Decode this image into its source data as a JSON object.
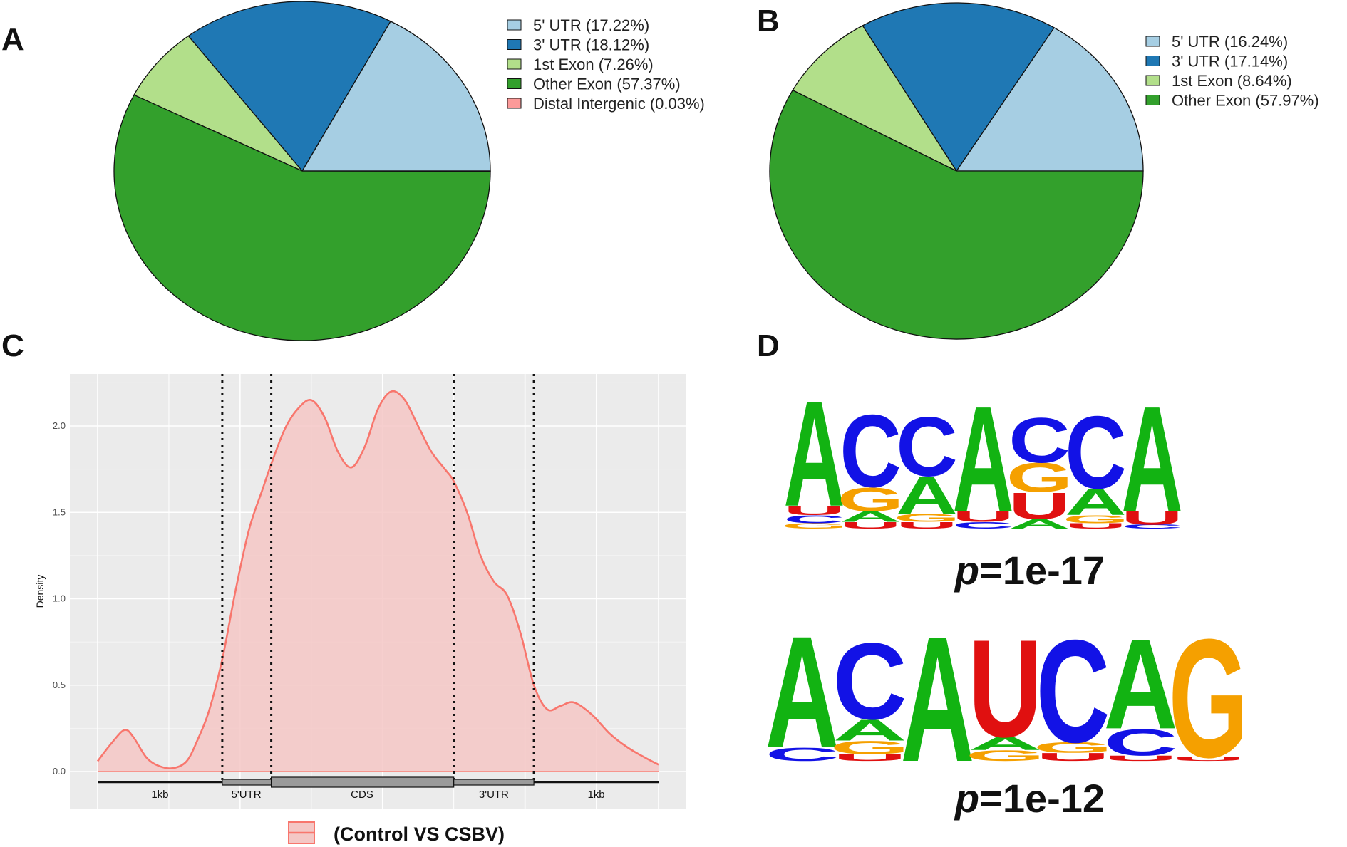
{
  "panels": {
    "a": "A",
    "b": "B",
    "c": "C",
    "d": "D"
  },
  "colors": {
    "utr5": "#a6cee3",
    "utr3": "#1f78b4",
    "first_exon": "#b2df8a",
    "other_exon": "#33a02c",
    "distal": "#fb9a99",
    "density_line": "#f8766d",
    "density_fill": "#f4c7c5",
    "plot_bg": "#ebebeb",
    "base_A": "#12b312",
    "base_C": "#1212e6",
    "base_G": "#f5a000",
    "base_U": "#e01010"
  },
  "chart_data": [
    {
      "id": "A",
      "type": "pie",
      "slices": [
        {
          "label": "5' UTR (17.22%)",
          "value": 17.22,
          "color_key": "utr5"
        },
        {
          "label": "3' UTR (18.12%)",
          "value": 18.12,
          "color_key": "utr3"
        },
        {
          "label": "1st Exon (7.26%)",
          "value": 7.26,
          "color_key": "first_exon"
        },
        {
          "label": "Other Exon (57.37%)",
          "value": 57.37,
          "color_key": "other_exon"
        },
        {
          "label": "Distal Intergenic (0.03%)",
          "value": 0.03,
          "color_key": "distal"
        }
      ]
    },
    {
      "id": "B",
      "type": "pie",
      "slices": [
        {
          "label": "5' UTR (16.24%)",
          "value": 16.24,
          "color_key": "utr5"
        },
        {
          "label": "3' UTR (17.14%)",
          "value": 17.14,
          "color_key": "utr3"
        },
        {
          "label": "1st Exon (8.64%)",
          "value": 8.64,
          "color_key": "first_exon"
        },
        {
          "label": "Other Exon (57.97%)",
          "value": 57.97,
          "color_key": "other_exon"
        }
      ]
    },
    {
      "id": "C",
      "type": "area",
      "ylabel": "Density",
      "ylim": [
        -0.2,
        2.3
      ],
      "xlim": [
        0,
        6.3
      ],
      "yticks": [
        0.0,
        0.5,
        1.0,
        1.5,
        2.0
      ],
      "ytick_labels": [
        "0.0",
        "0.5",
        "1.0",
        "1.5",
        "2.0"
      ],
      "x_minor_grid": [
        0.8,
        1.6,
        2.4,
        3.2,
        4.0,
        4.8,
        5.6
      ],
      "boundaries": [
        1.4,
        1.95,
        4.0,
        4.9
      ],
      "regions": [
        {
          "label": "1kb",
          "start": 0,
          "end": 1.4,
          "center": 0.7
        },
        {
          "label": "5'UTR",
          "start": 1.4,
          "end": 1.95,
          "center": 1.67
        },
        {
          "label": "CDS",
          "start": 1.95,
          "end": 4.0,
          "center": 2.97
        },
        {
          "label": "3'UTR",
          "start": 4.0,
          "end": 4.9,
          "center": 4.45
        },
        {
          "label": "1kb",
          "start": 4.9,
          "end": 6.3,
          "center": 5.6
        }
      ],
      "legend_label": "(Control VS CSBV)",
      "x": [
        0.0,
        0.15,
        0.3,
        0.4,
        0.55,
        0.7,
        0.85,
        1.0,
        1.12,
        1.25,
        1.4,
        1.55,
        1.7,
        1.85,
        1.95,
        2.1,
        2.25,
        2.4,
        2.55,
        2.7,
        2.85,
        3.0,
        3.15,
        3.3,
        3.45,
        3.6,
        3.75,
        3.9,
        4.0,
        4.15,
        4.3,
        4.45,
        4.6,
        4.75,
        4.9,
        5.05,
        5.2,
        5.35,
        5.55,
        5.75,
        5.95,
        6.15,
        6.3
      ],
      "y": [
        0.06,
        0.16,
        0.24,
        0.2,
        0.08,
        0.03,
        0.02,
        0.06,
        0.18,
        0.35,
        0.65,
        1.05,
        1.4,
        1.63,
        1.78,
        1.98,
        2.1,
        2.15,
        2.05,
        1.85,
        1.76,
        1.88,
        2.1,
        2.2,
        2.15,
        2.0,
        1.85,
        1.75,
        1.68,
        1.5,
        1.25,
        1.1,
        1.02,
        0.8,
        0.5,
        0.36,
        0.38,
        0.4,
        0.33,
        0.22,
        0.14,
        0.08,
        0.04
      ]
    }
  ],
  "motifs": [
    {
      "pvalue": {
        "prefix": "p",
        "suffix": "=1e-17"
      },
      "positions": [
        [
          {
            "base": "A",
            "h": 0.8
          },
          {
            "base": "U",
            "h": 0.07
          },
          {
            "base": "C",
            "h": 0.06
          },
          {
            "base": "G",
            "h": 0.04
          }
        ],
        [
          {
            "base": "C",
            "h": 0.55
          },
          {
            "base": "G",
            "h": 0.18
          },
          {
            "base": "A",
            "h": 0.08
          },
          {
            "base": "U",
            "h": 0.05
          }
        ],
        [
          {
            "base": "C",
            "h": 0.45
          },
          {
            "base": "A",
            "h": 0.28
          },
          {
            "base": "G",
            "h": 0.06
          },
          {
            "base": "U",
            "h": 0.05
          }
        ],
        [
          {
            "base": "A",
            "h": 0.8
          },
          {
            "base": "U",
            "h": 0.08
          },
          {
            "base": "C",
            "h": 0.05
          }
        ],
        [
          {
            "base": "C",
            "h": 0.34
          },
          {
            "base": "G",
            "h": 0.22
          },
          {
            "base": "U",
            "h": 0.2
          },
          {
            "base": "A",
            "h": 0.07
          }
        ],
        [
          {
            "base": "C",
            "h": 0.55
          },
          {
            "base": "A",
            "h": 0.2
          },
          {
            "base": "G",
            "h": 0.06
          },
          {
            "base": "U",
            "h": 0.04
          }
        ],
        [
          {
            "base": "A",
            "h": 0.8
          },
          {
            "base": "U",
            "h": 0.1
          },
          {
            "base": "C",
            "h": 0.03
          }
        ]
      ]
    },
    {
      "pvalue": {
        "prefix": "p",
        "suffix": "=1e-12"
      },
      "positions": [
        [
          {
            "base": "A",
            "h": 0.85
          },
          {
            "base": "C",
            "h": 0.1
          }
        ],
        [
          {
            "base": "C",
            "h": 0.58
          },
          {
            "base": "A",
            "h": 0.16
          },
          {
            "base": "G",
            "h": 0.1
          },
          {
            "base": "U",
            "h": 0.05
          }
        ],
        [
          {
            "base": "A",
            "h": 0.95
          }
        ],
        [
          {
            "base": "U",
            "h": 0.74
          },
          {
            "base": "A",
            "h": 0.1
          },
          {
            "base": "G",
            "h": 0.08
          }
        ],
        [
          {
            "base": "C",
            "h": 0.78
          },
          {
            "base": "G",
            "h": 0.08
          },
          {
            "base": "U",
            "h": 0.06
          }
        ],
        [
          {
            "base": "A",
            "h": 0.68
          },
          {
            "base": "C",
            "h": 0.2
          },
          {
            "base": "U",
            "h": 0.04
          }
        ],
        [
          {
            "base": "G",
            "h": 0.9
          },
          {
            "base": "U",
            "h": 0.03
          }
        ]
      ]
    }
  ]
}
